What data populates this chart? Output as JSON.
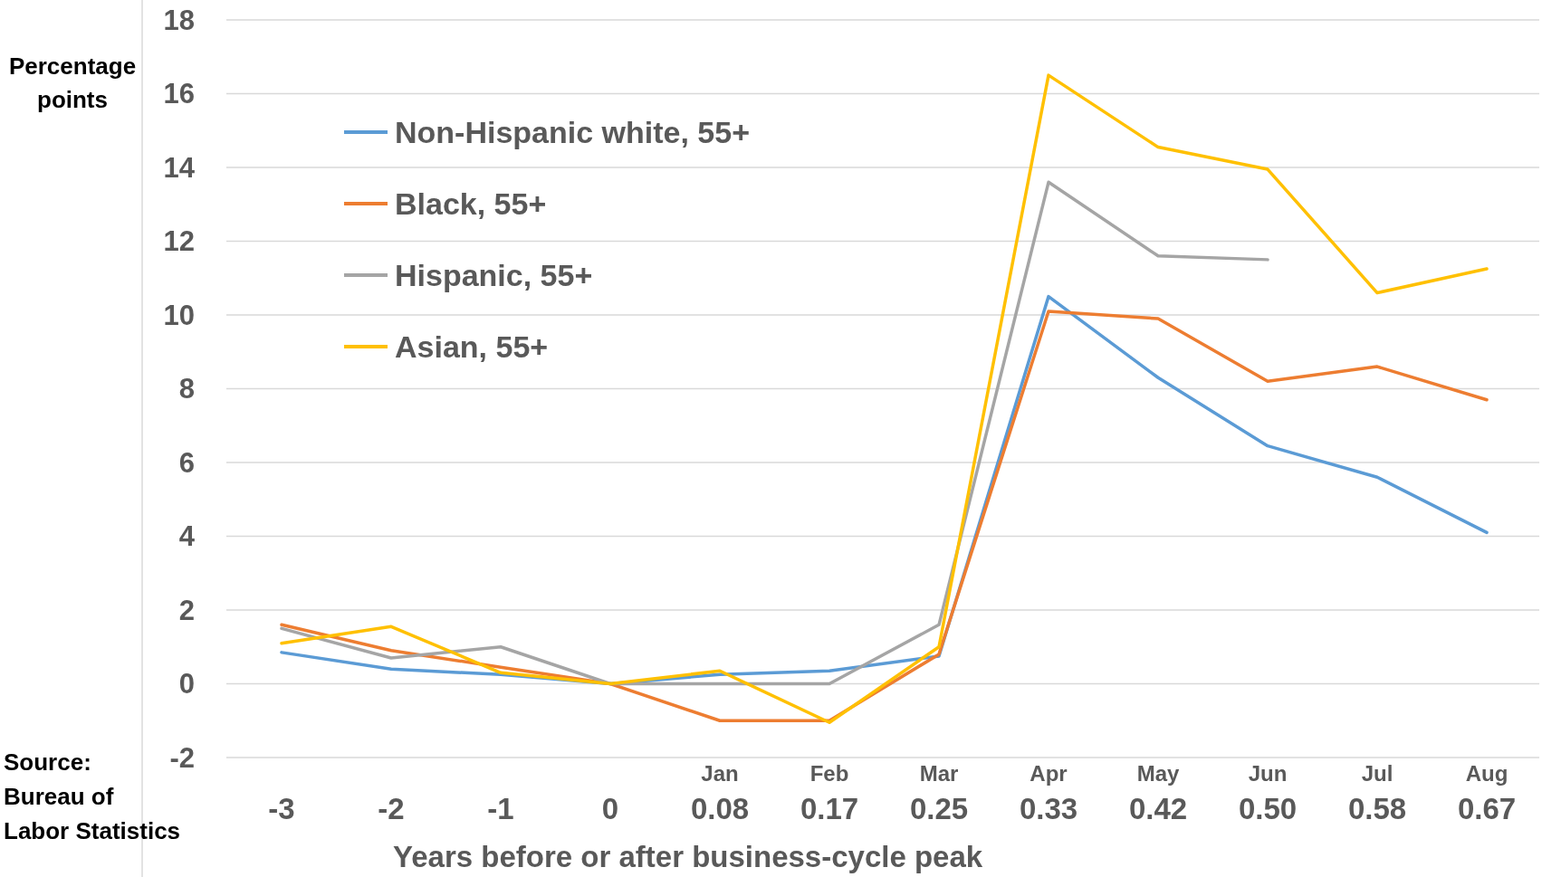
{
  "chart_data": {
    "type": "line",
    "ylabel": "Percentage points",
    "xlabel": "Years before or after business-cycle peak",
    "annotations": [
      "Source: Bureau of Labor Statistics"
    ],
    "categories": [
      "-3",
      "-2",
      "-1",
      "0",
      "Jan\n0.08",
      "Feb\n0.17",
      "Mar\n0.25",
      "Apr\n0.33",
      "May\n0.42",
      "Jun\n0.50",
      "Jul\n0.58",
      "Aug\n0.67"
    ],
    "series": [
      {
        "name": "Non-Hispanic white, 55+",
        "color": "#5b9bd5",
        "values": [
          0.85,
          0.4,
          0.25,
          0,
          0.25,
          0.35,
          0.75,
          10.5,
          8.3,
          6.45,
          5.6,
          4.1
        ]
      },
      {
        "name": "Black, 55+",
        "color": "#ed7d31",
        "values": [
          1.6,
          0.9,
          0.45,
          0,
          -1,
          -1,
          0.8,
          10.1,
          9.9,
          8.2,
          8.6,
          7.7
        ]
      },
      {
        "name": "Hispanic, 55+",
        "color": "#a5a5a5",
        "values": [
          1.5,
          0.7,
          1.0,
          0,
          0,
          0,
          1.6,
          13.6,
          11.6,
          11.5,
          null,
          null
        ]
      },
      {
        "name": "Asian, 55+",
        "color": "#ffc000",
        "values": [
          1.1,
          1.55,
          0.3,
          0,
          0.35,
          -1.05,
          1.0,
          16.5,
          14.55,
          13.95,
          10.6,
          11.25
        ]
      }
    ],
    "ylim": [
      -2,
      18
    ],
    "yticks": [
      -2,
      0,
      2,
      4,
      6,
      8,
      10,
      12,
      14,
      16,
      18
    ],
    "grid": "y",
    "legend": "top left",
    "marker": "none",
    "line_style": "solid"
  }
}
